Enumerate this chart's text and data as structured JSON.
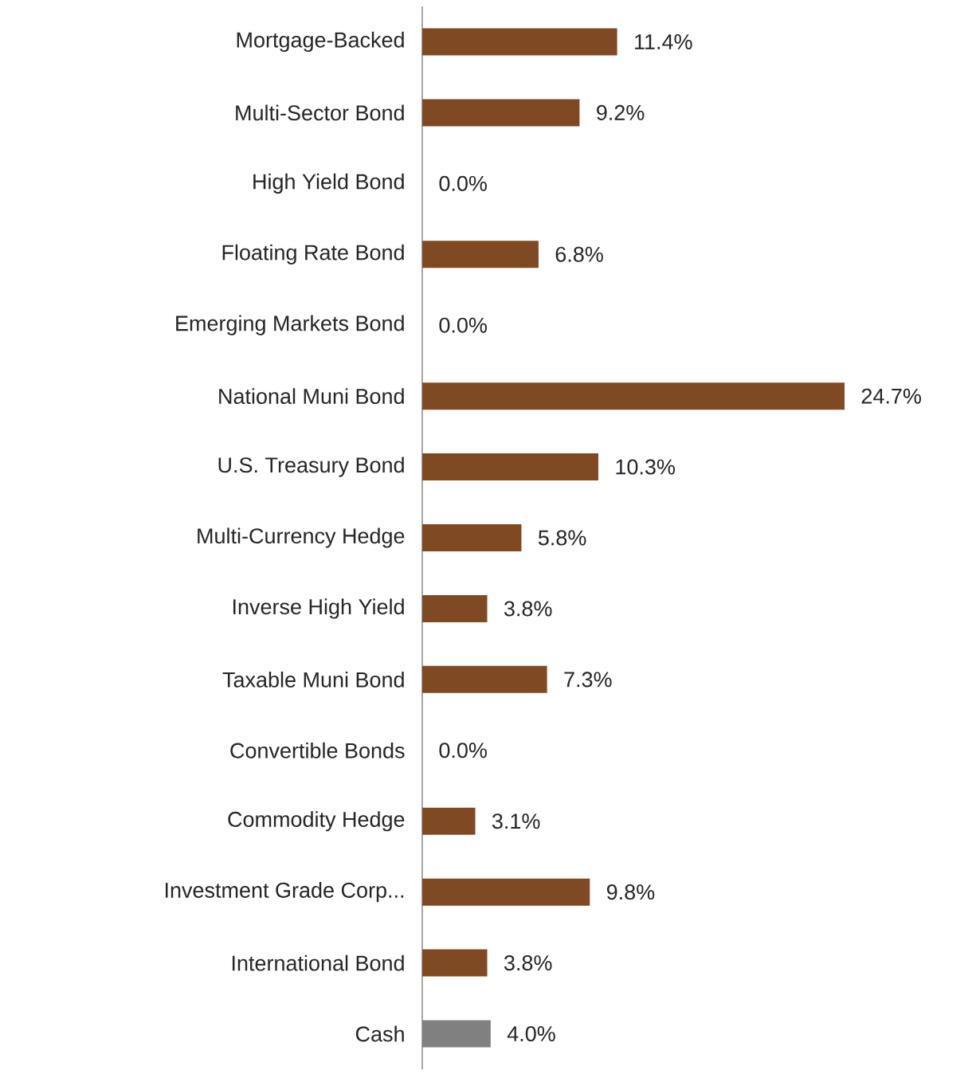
{
  "chart_data": {
    "type": "bar",
    "orientation": "horizontal",
    "categories": [
      "Mortgage-Backed",
      "Multi-Sector Bond",
      "High Yield Bond",
      "Floating Rate Bond",
      "Emerging Markets Bond",
      "National Muni Bond",
      "U.S. Treasury Bond",
      "Multi-Currency Hedge",
      "Inverse High Yield",
      "Taxable Muni Bond",
      "Convertible Bonds",
      "Commodity Hedge",
      "Investment Grade Corp...",
      "International Bond",
      "Cash"
    ],
    "values": [
      11.4,
      9.2,
      0.0,
      6.8,
      0.0,
      24.7,
      10.3,
      5.8,
      3.8,
      7.3,
      0.0,
      3.1,
      9.8,
      3.8,
      4.0
    ],
    "value_labels": [
      "11.4%",
      "9.2%",
      "0.0%",
      "6.8%",
      "0.0%",
      "24.7%",
      "10.3%",
      "5.8%",
      "3.8%",
      "7.3%",
      "0.0%",
      "3.1%",
      "9.8%",
      "3.8%",
      "4.0%"
    ],
    "colors": [
      "#7f4a23",
      "#7f4a23",
      "#7f4a23",
      "#7f4a23",
      "#7f4a23",
      "#7f4a23",
      "#7f4a23",
      "#7f4a23",
      "#7f4a23",
      "#7f4a23",
      "#7f4a23",
      "#7f4a23",
      "#7f4a23",
      "#7f4a23",
      "#808080"
    ]
  }
}
